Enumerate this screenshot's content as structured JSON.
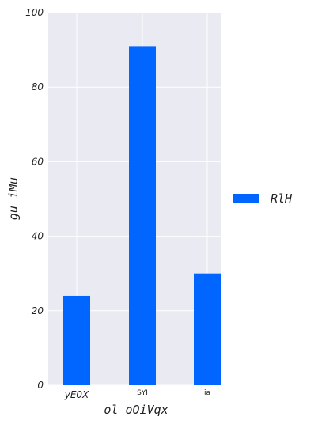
{
  "chart_data": {
    "type": "bar",
    "categories": [
      "yE0X",
      "SYI",
      "ia"
    ],
    "series": [
      {
        "name": "RlH",
        "values": [
          24,
          91,
          30
        ],
        "color": "#0066ff"
      }
    ],
    "xlabel": "ol oOiVqx",
    "ylabel": "gu  iMu",
    "ylim": [
      0,
      100
    ],
    "yticks": [
      "0",
      "20",
      "40",
      "60",
      "80",
      "100"
    ],
    "grid": true,
    "legend_position": "right"
  }
}
